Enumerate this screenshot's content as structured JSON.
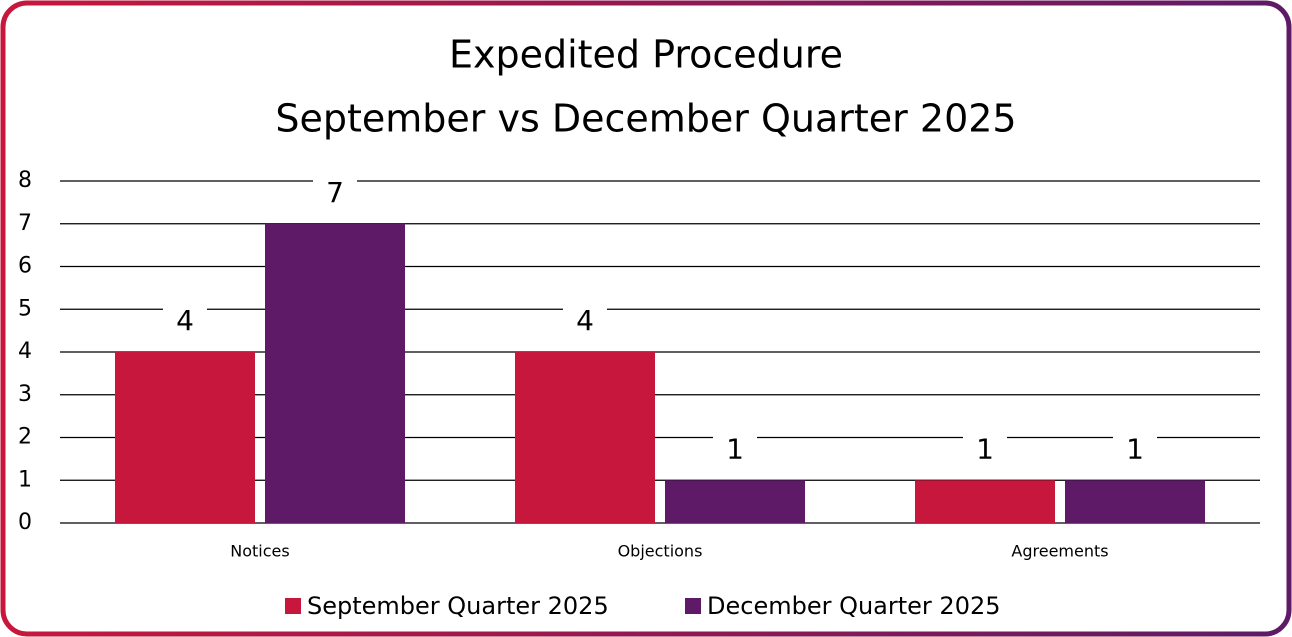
{
  "chart_data": {
    "type": "bar",
    "title": "Expedited Procedure",
    "subtitle": "September vs December Quarter 2025",
    "categories": [
      "Notices",
      "Objections",
      "Agreements"
    ],
    "series": [
      {
        "name": "September Quarter 2025",
        "color": "#c8173c",
        "values": [
          4,
          4,
          1
        ]
      },
      {
        "name": "December Quarter 2025",
        "color": "#5e1a66",
        "values": [
          7,
          1,
          1
        ]
      }
    ],
    "ylim": [
      0,
      8
    ],
    "yticks": [
      0,
      1,
      2,
      3,
      4,
      5,
      6,
      7,
      8
    ],
    "grid": true,
    "legend": "bottom"
  }
}
